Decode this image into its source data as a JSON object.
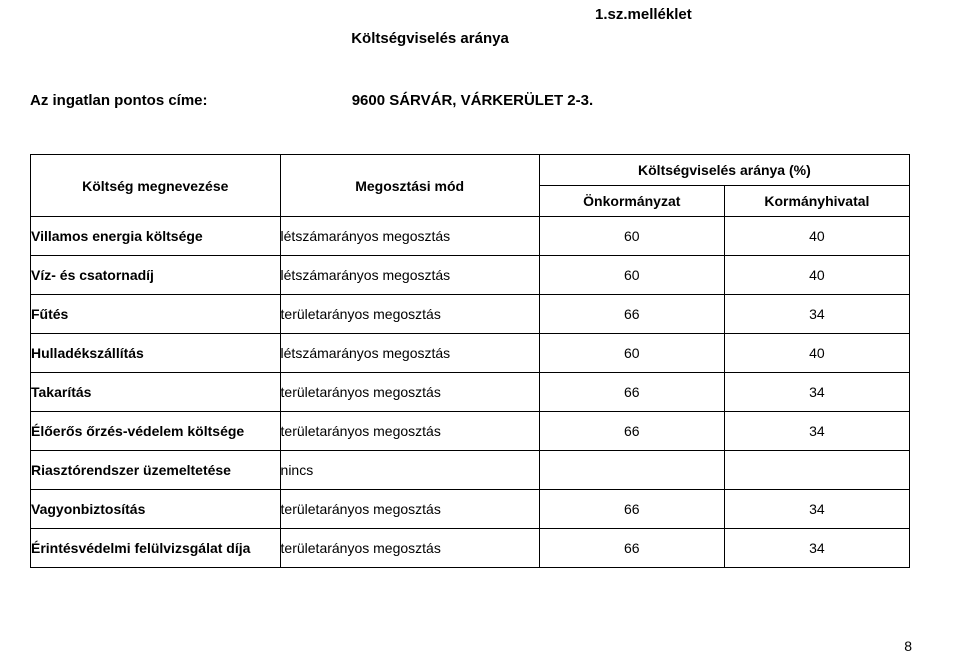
{
  "attachment_label": "1.sz.melléklet",
  "doc_title": "Költségviselés aránya",
  "address": {
    "label": "Az ingatlan pontos címe:",
    "value": "9600 SÁRVÁR, VÁRKERÜLET 2-3."
  },
  "table": {
    "headers": {
      "name": "Költség megnevezése",
      "mode": "Megosztási mód",
      "pct_group": "Költségviselés aránya (%)",
      "col1": "Önkormányzat",
      "col2": "Kormányhivatal"
    },
    "rows": [
      {
        "name": "Villamos energia költsége",
        "mode": "létszámarányos megosztás",
        "v1": "60",
        "v2": "40"
      },
      {
        "name": "Víz- és csatornadíj",
        "mode": "létszámarányos megosztás",
        "v1": "60",
        "v2": "40"
      },
      {
        "name": "Fűtés",
        "mode": "területarányos megosztás",
        "v1": "66",
        "v2": "34"
      },
      {
        "name": "Hulladékszállítás",
        "mode": "létszámarányos megosztás",
        "v1": "60",
        "v2": "40"
      },
      {
        "name": "Takarítás",
        "mode": "területarányos megosztás",
        "v1": "66",
        "v2": "34"
      },
      {
        "name": "Élőerős őrzés-védelem költsége",
        "mode": "területarányos megosztás",
        "v1": "66",
        "v2": "34"
      },
      {
        "name": "Riasztórendszer üzemeltetése",
        "mode": "nincs",
        "v1": "",
        "v2": ""
      },
      {
        "name": "Vagyonbiztosítás",
        "mode": "területarányos megosztás",
        "v1": "66",
        "v2": "34"
      },
      {
        "name": "Érintésvédelmi felülvizsgálat díja",
        "mode": "területarányos megosztás",
        "v1": "66",
        "v2": "34"
      }
    ]
  },
  "page_number": "8"
}
